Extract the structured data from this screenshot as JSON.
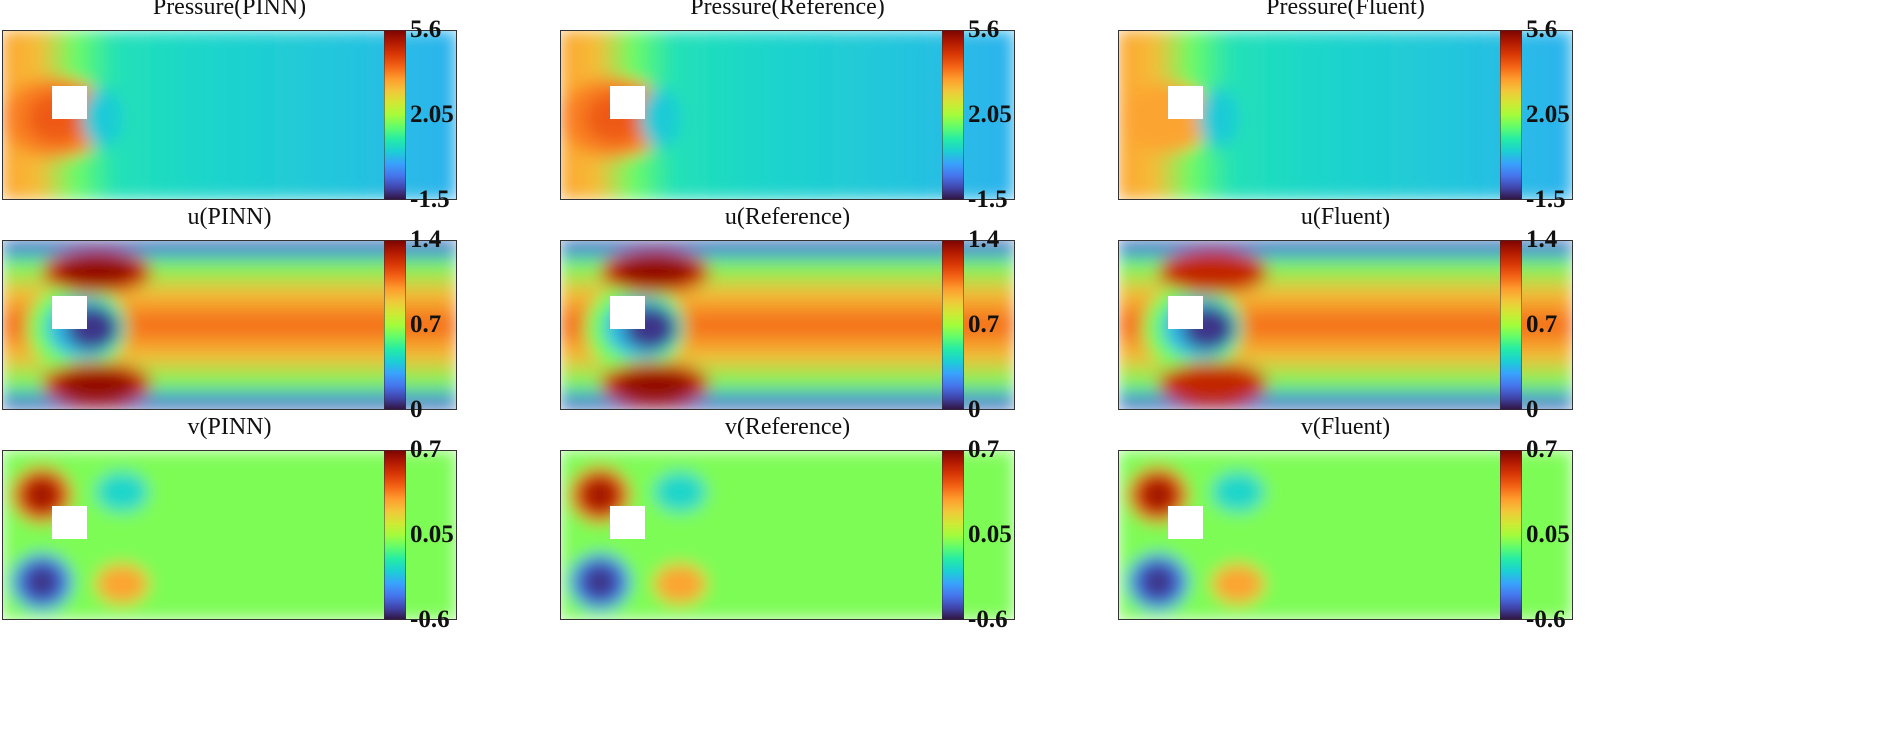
{
  "chart_data": [
    {
      "type": "heatmap",
      "title": "Pressure(PINN)",
      "variable": "pressure",
      "source": "PINN",
      "colorbar": {
        "min": -1.5,
        "max": 5.6,
        "ticks": [
          "5.6",
          "2.05",
          "-1.5"
        ]
      }
    },
    {
      "type": "heatmap",
      "title": "Pressure(Reference)",
      "variable": "pressure",
      "source": "Reference",
      "colorbar": {
        "min": -1.5,
        "max": 5.6,
        "ticks": [
          "5.6",
          "2.05",
          "-1.5"
        ]
      }
    },
    {
      "type": "heatmap",
      "title": "Pressure(Fluent)",
      "variable": "pressure",
      "source": "Fluent",
      "colorbar": {
        "min": -1.5,
        "max": 5.6,
        "ticks": [
          "5.6",
          "2.05",
          "-1.5"
        ]
      }
    },
    {
      "type": "heatmap",
      "title": "u(PINN)",
      "variable": "u",
      "source": "PINN",
      "colorbar": {
        "min": 0,
        "max": 1.4,
        "ticks": [
          "1.4",
          "0.7",
          "0"
        ]
      }
    },
    {
      "type": "heatmap",
      "title": "u(Reference)",
      "variable": "u",
      "source": "Reference",
      "colorbar": {
        "min": 0,
        "max": 1.4,
        "ticks": [
          "1.4",
          "0.7",
          "0"
        ]
      }
    },
    {
      "type": "heatmap",
      "title": "u(Fluent)",
      "variable": "u",
      "source": "Fluent",
      "colorbar": {
        "min": 0,
        "max": 1.4,
        "ticks": [
          "1.4",
          "0.7",
          "0"
        ]
      }
    },
    {
      "type": "heatmap",
      "title": "v(PINN)",
      "variable": "v",
      "source": "PINN",
      "colorbar": {
        "min": -0.6,
        "max": 0.7,
        "ticks": [
          "0.7",
          "0.05",
          "-0.6"
        ]
      }
    },
    {
      "type": "heatmap",
      "title": "v(Reference)",
      "variable": "v",
      "source": "Reference",
      "colorbar": {
        "min": -0.6,
        "max": 0.7,
        "ticks": [
          "0.7",
          "0.05",
          "-0.6"
        ]
      }
    },
    {
      "type": "heatmap",
      "title": "v(Fluent)",
      "variable": "v",
      "source": "Fluent",
      "colorbar": {
        "min": -0.6,
        "max": 0.7,
        "ticks": [
          "0.7",
          "0.05",
          "-0.6"
        ]
      }
    }
  ],
  "colormap": {
    "name": "turbo",
    "stops": [
      "#30123b",
      "#4145ab",
      "#4675ed",
      "#39a2fc",
      "#1bcfd4",
      "#24eca6",
      "#61fc6c",
      "#a4fc3b",
      "#d1e834",
      "#f3c63a",
      "#fe9b2d",
      "#f36315",
      "#d93806",
      "#b11901",
      "#7a0402"
    ]
  },
  "obstacle_color": "#ffffff"
}
